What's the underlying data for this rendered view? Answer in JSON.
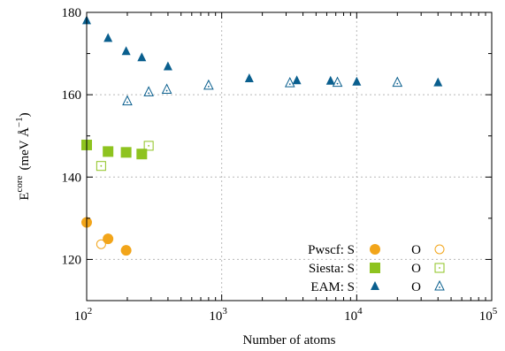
{
  "chart_data": {
    "type": "scatter",
    "xlabel": "Number of atoms",
    "ylabel": {
      "base": "E",
      "sup": "core",
      "unit_open": "(meV Å",
      "unit_sup": "−1",
      "unit_close": ")"
    },
    "xscale": "log",
    "xlim": [
      100,
      100000
    ],
    "ylim": [
      110,
      180
    ],
    "x_ticks": [
      {
        "value": 100,
        "base": "10",
        "exp": "2"
      },
      {
        "value": 1000,
        "base": "10",
        "exp": "3"
      },
      {
        "value": 10000,
        "base": "10",
        "exp": "4"
      },
      {
        "value": 100000,
        "base": "10",
        "exp": "5"
      }
    ],
    "y_ticks": [
      {
        "value": 120,
        "label": "120"
      },
      {
        "value": 140,
        "label": "140"
      },
      {
        "value": 160,
        "label": "160"
      },
      {
        "value": 180,
        "label": "180"
      }
    ],
    "legend_position": "bottom-right",
    "legend": [
      {
        "method": "Pwscf: S",
        "o_label": "O",
        "series_s": "pwscf_s",
        "series_o": "pwscf_o"
      },
      {
        "method": "Siesta: S",
        "o_label": "O",
        "series_s": "siesta_s",
        "series_o": "siesta_o"
      },
      {
        "method": "EAM: S",
        "o_label": "O",
        "series_s": "eam_s",
        "series_o": "eam_o"
      }
    ],
    "series": [
      {
        "id": "pwscf_s",
        "marker": "circle",
        "filled": true,
        "color": "#f2a51a",
        "points": [
          [
            100,
            129
          ],
          [
            144,
            125
          ],
          [
            196,
            122.2
          ]
        ]
      },
      {
        "id": "pwscf_o",
        "marker": "circle",
        "filled": false,
        "color": "#f2a51a",
        "points": [
          [
            128,
            123.7
          ]
        ]
      },
      {
        "id": "siesta_s",
        "marker": "square",
        "filled": true,
        "color": "#8ec31f",
        "points": [
          [
            100,
            147.8
          ],
          [
            144,
            146.2
          ],
          [
            196,
            146
          ],
          [
            256,
            145.6
          ]
        ]
      },
      {
        "id": "siesta_o",
        "marker": "square",
        "filled": false,
        "color": "#8ec31f",
        "points": [
          [
            128,
            142.7
          ],
          [
            288,
            147.6
          ]
        ]
      },
      {
        "id": "eam_s",
        "marker": "triangle",
        "filled": true,
        "color": "#0a5f8e",
        "points": [
          [
            100,
            178
          ],
          [
            144,
            173.7
          ],
          [
            196,
            170.5
          ],
          [
            256,
            169
          ],
          [
            400,
            166.8
          ],
          [
            1600,
            163.9
          ],
          [
            3600,
            163.4
          ],
          [
            6400,
            163.3
          ],
          [
            10000,
            163.1
          ],
          [
            40000,
            162.9
          ]
        ]
      },
      {
        "id": "eam_o",
        "marker": "triangle",
        "filled": false,
        "color": "#0a5f8e",
        "points": [
          [
            200,
            158.4
          ],
          [
            288,
            160.6
          ],
          [
            392,
            161.2
          ],
          [
            800,
            162.2
          ],
          [
            3200,
            162.8
          ],
          [
            7200,
            162.9
          ],
          [
            20000,
            162.9
          ]
        ]
      }
    ]
  }
}
